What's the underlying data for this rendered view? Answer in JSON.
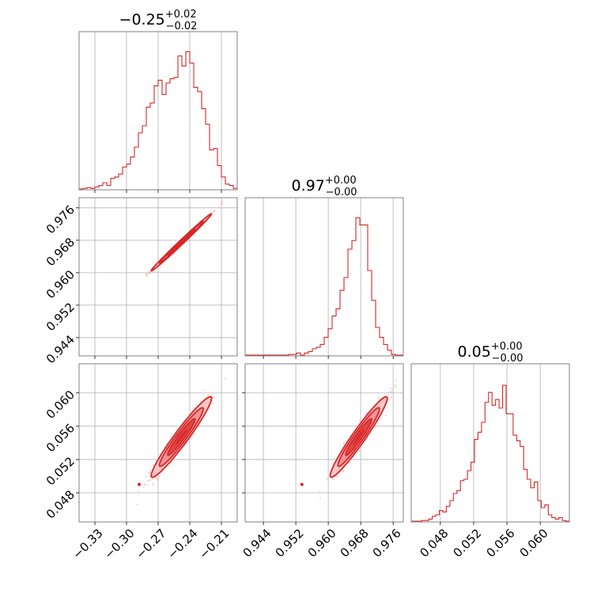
{
  "colors": {
    "accent": "#d62728",
    "contour_fill_light": "#f5c2c2",
    "contour_fill_mid": "#ec8f8f",
    "contour_fill_dark": "#e03d3d",
    "scatter": "#f4b6b6",
    "grid": "#b0b0b0",
    "frame": "#808080"
  },
  "chart_data": {
    "type": "corner",
    "grid": true,
    "parameters": [
      {
        "id": "p1",
        "title_value": "−0.25",
        "title_upper": "+0.02",
        "title_lower": "−0.02",
        "range": [
          -0.345,
          -0.195
        ],
        "ticks": [
          -0.33,
          -0.3,
          -0.27,
          -0.24,
          -0.21
        ],
        "tick_labels": [
          "−0.33",
          "−0.30",
          "−0.27",
          "−0.24",
          "−0.21"
        ],
        "mean": -0.248,
        "sd": 0.013,
        "histogram": [
          0.005,
          0.01,
          0.015,
          0.01,
          0.02,
          0.03,
          0.05,
          0.03,
          0.08,
          0.09,
          0.11,
          0.16,
          0.18,
          0.23,
          0.3,
          0.4,
          0.45,
          0.58,
          0.61,
          0.73,
          0.77,
          0.67,
          0.75,
          0.78,
          0.79,
          0.94,
          0.87,
          0.97,
          0.89,
          0.72,
          0.69,
          0.57,
          0.46,
          0.28,
          0.29,
          0.17,
          0.09,
          0.04,
          0.03,
          0.01
        ]
      },
      {
        "id": "p2",
        "title_value": "0.97",
        "title_upper": "+0.00",
        "title_lower": "−0.00",
        "range": [
          0.9395,
          0.9785
        ],
        "ticks": [
          0.944,
          0.952,
          0.96,
          0.968,
          0.976
        ],
        "tick_labels": [
          "0.944",
          "0.952",
          "0.960",
          "0.968",
          "0.976"
        ],
        "mean": 0.9675,
        "sd": 0.0032,
        "histogram": [
          0.005,
          0.005,
          0.005,
          0.005,
          0.005,
          0.005,
          0.005,
          0.005,
          0.005,
          0.005,
          0.005,
          0.01,
          0.01,
          0.02,
          0.005,
          0.02,
          0.03,
          0.05,
          0.06,
          0.08,
          0.13,
          0.19,
          0.28,
          0.33,
          0.46,
          0.55,
          0.75,
          0.81,
          0.97,
          0.92,
          0.92,
          0.6,
          0.39,
          0.2,
          0.13,
          0.08,
          0.04,
          0.01,
          0.005,
          0.005
        ]
      },
      {
        "id": "p3",
        "title_value": "0.05",
        "title_upper": "+0.00",
        "title_lower": "−0.00",
        "range": [
          0.0445,
          0.0635
        ],
        "ticks": [
          0.048,
          0.052,
          0.056,
          0.06
        ],
        "tick_labels": [
          "0.048",
          "0.052",
          "0.056",
          "0.060"
        ],
        "mean": 0.0547,
        "sd": 0.0022,
        "histogram": [
          0.005,
          0.005,
          0.005,
          0.01,
          0.01,
          0.02,
          0.04,
          0.05,
          0.08,
          0.07,
          0.11,
          0.15,
          0.2,
          0.22,
          0.29,
          0.3,
          0.36,
          0.42,
          0.58,
          0.63,
          0.7,
          0.84,
          0.91,
          0.82,
          0.86,
          0.8,
          0.96,
          0.76,
          0.76,
          0.61,
          0.57,
          0.53,
          0.37,
          0.3,
          0.24,
          0.28,
          0.15,
          0.1,
          0.12,
          0.05,
          0.03,
          0.02,
          0.03,
          0.01,
          0.005
        ]
      }
    ],
    "pairs": [
      {
        "x": "p1",
        "y": "p2",
        "corr": 0.995,
        "marker": null
      },
      {
        "x": "p1",
        "y": "p3",
        "corr": 0.96,
        "marker": [
          -0.288,
          0.049
        ]
      },
      {
        "x": "p2",
        "y": "p3",
        "corr": 0.96,
        "marker": [
          0.9535,
          0.049
        ]
      }
    ]
  }
}
